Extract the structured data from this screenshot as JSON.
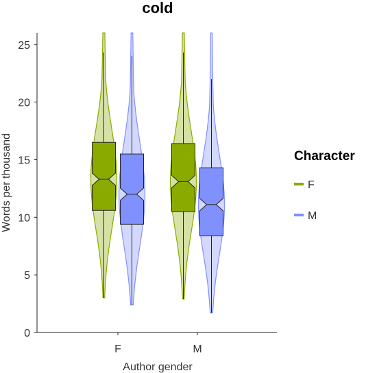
{
  "chart_data": {
    "type": "violin",
    "title": "cold",
    "xlabel": "Author gender",
    "ylabel": "Words per thousand",
    "categories": [
      "F",
      "M"
    ],
    "ylim": [
      0,
      26
    ],
    "yticks": [
      0,
      5,
      10,
      15,
      20,
      25
    ],
    "grid": false,
    "legend": {
      "title": "Character",
      "placement": "right"
    },
    "series": [
      {
        "name": "F",
        "color": "#8aaa00",
        "stats": [
          {
            "category": "F",
            "min": 3.0,
            "q1": 10.6,
            "median": 13.3,
            "q3": 16.5,
            "whisker_high": 24.3,
            "max": 26.0
          },
          {
            "category": "M",
            "min": 2.9,
            "q1": 10.5,
            "median": 13.1,
            "q3": 16.4,
            "whisker_high": 24.3,
            "max": 26.0
          }
        ]
      },
      {
        "name": "M",
        "color": "#8090ff",
        "stats": [
          {
            "category": "F",
            "min": 2.4,
            "q1": 9.4,
            "median": 12.0,
            "q3": 15.5,
            "whisker_high": 24.0,
            "max": 26.0
          },
          {
            "category": "M",
            "min": 1.7,
            "q1": 8.4,
            "median": 11.1,
            "q3": 14.3,
            "whisker_high": 22.0,
            "max": 26.0
          }
        ]
      }
    ]
  }
}
